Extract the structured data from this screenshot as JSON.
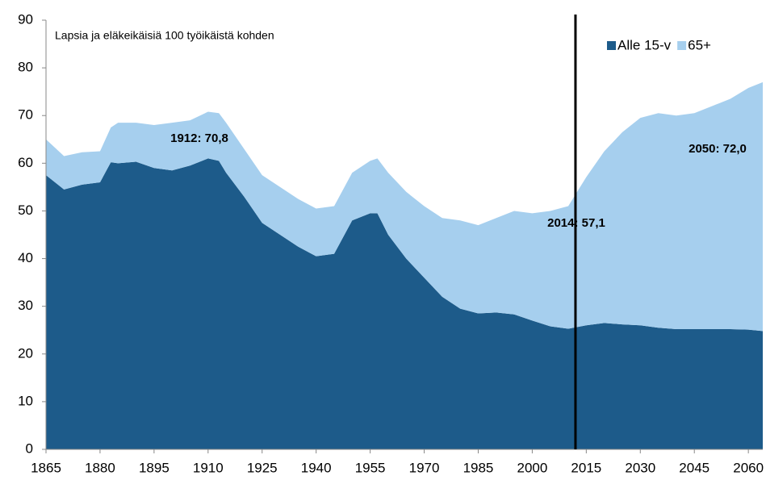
{
  "chart_data": {
    "type": "stacked_area",
    "note": "Lapsia ja eläkeikäisiä 100 työikäistä kohden",
    "x": [
      1865,
      1870,
      1875,
      1880,
      1883,
      1885,
      1890,
      1895,
      1900,
      1905,
      1910,
      1913,
      1915,
      1920,
      1925,
      1930,
      1935,
      1940,
      1945,
      1950,
      1955,
      1957,
      1960,
      1965,
      1970,
      1975,
      1980,
      1985,
      1990,
      1995,
      2000,
      2005,
      2010,
      2015,
      2020,
      2025,
      2030,
      2035,
      2040,
      2045,
      2050,
      2055,
      2060,
      2064
    ],
    "series": [
      {
        "name": "Alle 15-v",
        "color": "#1d5b8a",
        "values": [
          57.5,
          54.5,
          55.5,
          56,
          60.2,
          60,
          60.3,
          59,
          58.5,
          59.5,
          61,
          60.5,
          58,
          53,
          47.5,
          45,
          42.5,
          40.5,
          41,
          48,
          49.5,
          49.5,
          45,
          40,
          36,
          32,
          29.5,
          28.5,
          28.7,
          28.3,
          27,
          25.8,
          25.3,
          26,
          26.5,
          26.2,
          26,
          25.5,
          25.2,
          25.2,
          25.2,
          25.2,
          25.1,
          24.8
        ]
      },
      {
        "name": "65+",
        "color": "#a6cfee",
        "values": [
          7.5,
          7,
          6.8,
          6.5,
          7.3,
          8.5,
          8.2,
          9,
          10,
          9.5,
          9.8,
          10,
          10.5,
          10,
          10,
          10,
          10,
          10,
          10,
          10,
          11,
          11.5,
          13,
          14,
          15,
          16.5,
          18.5,
          18.5,
          19.8,
          21.7,
          22.5,
          24.2,
          25.7,
          31.1,
          36,
          40.3,
          43.5,
          45,
          44.8,
          45.3,
          46.8,
          48.3,
          50.7,
          52.2
        ]
      }
    ],
    "annotations": [
      "1912: 70,8",
      "2014: 57,1",
      "2050: 72,0"
    ],
    "vline": 2012,
    "xlim": [
      1865,
      2064
    ],
    "xticks": [
      1865,
      1880,
      1895,
      1910,
      1925,
      1940,
      1955,
      1970,
      1985,
      2000,
      2015,
      2030,
      2045,
      2060
    ],
    "ylim": [
      0,
      90
    ],
    "yticks": [
      0,
      10,
      20,
      30,
      40,
      50,
      60,
      70,
      80,
      90
    ],
    "legend": "top-right"
  }
}
